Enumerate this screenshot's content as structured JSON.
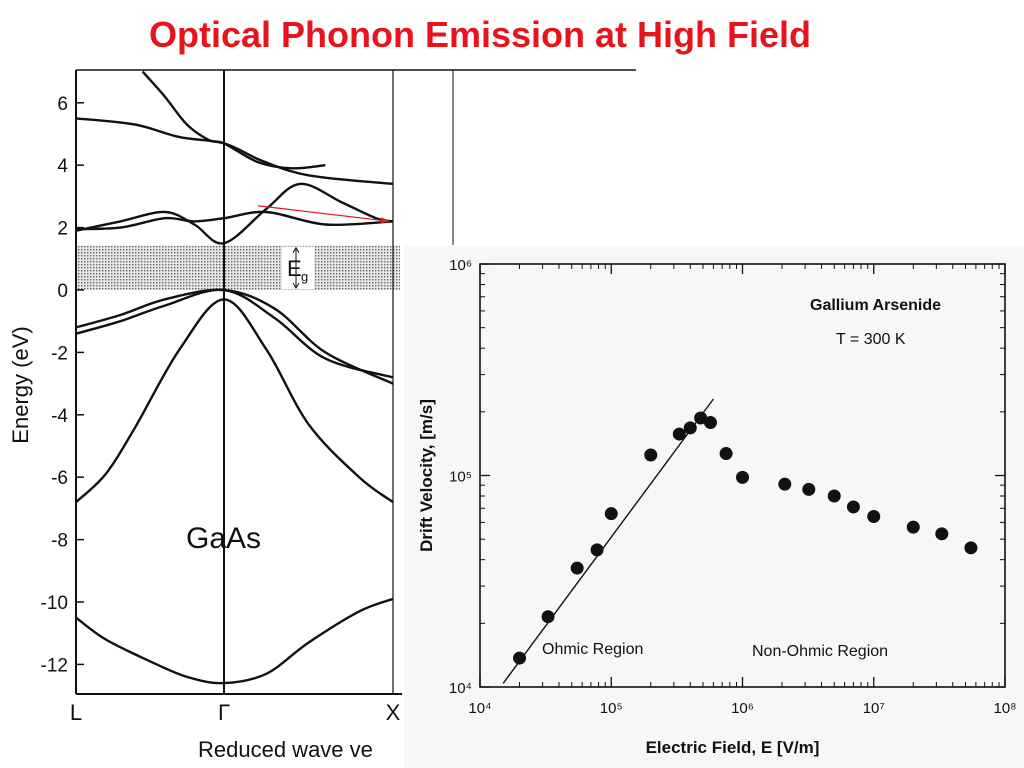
{
  "slide": {
    "title": "Optical Phonon Emission at High Field"
  },
  "colors": {
    "title": "#e8141c",
    "arrow": "#e01818",
    "band_lines": "#111111",
    "gap_fill": "#b8b8b8"
  },
  "chart_data": [
    {
      "type": "line",
      "title": "",
      "material_label": "GaAs",
      "gap_label": "E",
      "gap_label_sub": "g",
      "xlabel": "Reduced wave ve",
      "ylabel": "Energy (eV)",
      "ylim": [
        -13,
        7
      ],
      "y_ticks": [
        6,
        4,
        2,
        0,
        -2,
        -4,
        -6,
        -8,
        -10,
        -12
      ],
      "y_tick_labels": [
        "6",
        "4",
        "2",
        "0",
        "-2",
        "-4",
        "-6",
        "-8",
        "-10",
        "-12"
      ],
      "x_tick_labels": [
        "L",
        "Γ",
        "X"
      ],
      "band_gap": [
        0,
        1.42
      ],
      "bands": [
        {
          "x": [
            -1.0,
            -0.8,
            -0.5,
            -0.25,
            0.0,
            0.25,
            0.5,
            0.8,
            1.0
          ],
          "y": [
            -10.5,
            -11.2,
            -11.9,
            -12.4,
            -12.6,
            -12.3,
            -11.3,
            -10.3,
            -9.9
          ]
        },
        {
          "x": [
            -1.0,
            -0.8,
            -0.6,
            -0.3,
            0.0,
            0.25,
            0.5,
            0.8,
            1.0
          ],
          "y": [
            -6.8,
            -5.9,
            -4.4,
            -1.9,
            -0.3,
            -1.9,
            -4.3,
            -6.0,
            -6.8
          ]
        },
        {
          "x": [
            -1.0,
            -0.7,
            -0.4,
            0.0,
            0.3,
            0.6,
            1.0
          ],
          "y": [
            -1.4,
            -1.0,
            -0.5,
            0.0,
            -0.9,
            -2.2,
            -2.8
          ]
        },
        {
          "x": [
            -1.0,
            -0.7,
            -0.4,
            0.0,
            0.3,
            0.6,
            1.0
          ],
          "y": [
            -1.2,
            -0.8,
            -0.3,
            0.0,
            -0.6,
            -2.0,
            -3.0
          ]
        },
        {
          "x": [
            -1.0,
            -0.7,
            -0.4,
            -0.2,
            0.0,
            0.25,
            0.45,
            0.7,
            0.9,
            1.0
          ],
          "y": [
            1.9,
            2.2,
            2.5,
            2.1,
            1.5,
            2.6,
            3.4,
            2.8,
            2.3,
            2.2
          ]
        },
        {
          "x": [
            -1.0,
            -0.7,
            -0.4,
            -0.2,
            0.0,
            0.25,
            0.6,
            1.0
          ],
          "y": [
            1.95,
            2.0,
            2.3,
            2.2,
            2.3,
            2.5,
            2.1,
            2.2
          ]
        },
        {
          "x": [
            -1.0,
            -0.6,
            -0.3,
            0.0,
            0.2,
            0.4,
            0.6,
            1.0
          ],
          "y": [
            5.5,
            5.3,
            4.9,
            4.7,
            4.2,
            3.8,
            3.6,
            3.4
          ]
        },
        {
          "x": [
            -0.55,
            -0.4,
            -0.25,
            -0.1,
            0.0,
            0.2,
            0.4,
            0.6
          ],
          "y": [
            7.0,
            6.2,
            5.3,
            4.8,
            4.7,
            4.1,
            3.9,
            4.0
          ]
        }
      ],
      "transfer_arrow": {
        "from": {
          "x": 0.2,
          "y": 2.7
        },
        "to": {
          "x": 0.98,
          "y": 2.2
        }
      }
    },
    {
      "type": "scatter",
      "title": "Gallium Arsenide",
      "subtitle": "T = 300 K",
      "xlabel": "Electric Field,  E  [V/m]",
      "ylabel": "Drift  Velocity,  [m/s]",
      "x_scale": "log",
      "y_scale": "log",
      "xlim": [
        10000,
        100000000
      ],
      "ylim": [
        10000,
        1000000
      ],
      "x_tick_labels": [
        "10⁴",
        "10⁵",
        "10⁶",
        "10⁷",
        "10⁸"
      ],
      "y_tick_labels": [
        "10⁴",
        "10⁵",
        "10⁶"
      ],
      "annotations": [
        "Ohmic Region",
        "Non-Ohmic Region"
      ],
      "ohmic_fit": {
        "x": [
          15000,
          600000
        ],
        "y": [
          10400,
          230000
        ]
      },
      "points": {
        "x": [
          20000,
          33000,
          55000,
          78000,
          100000,
          200000,
          330000,
          400000,
          480000,
          570000,
          750000,
          1000000,
          2100000,
          3200000,
          5000000,
          7000000,
          10000000,
          20000000,
          33000000,
          55000000
        ],
        "y": [
          13700,
          21500,
          36500,
          44500,
          66000,
          125000,
          157000,
          168000,
          187000,
          178000,
          127000,
          98000,
          91000,
          86000,
          80000,
          71000,
          64000,
          57000,
          53000,
          45500
        ]
      }
    }
  ]
}
